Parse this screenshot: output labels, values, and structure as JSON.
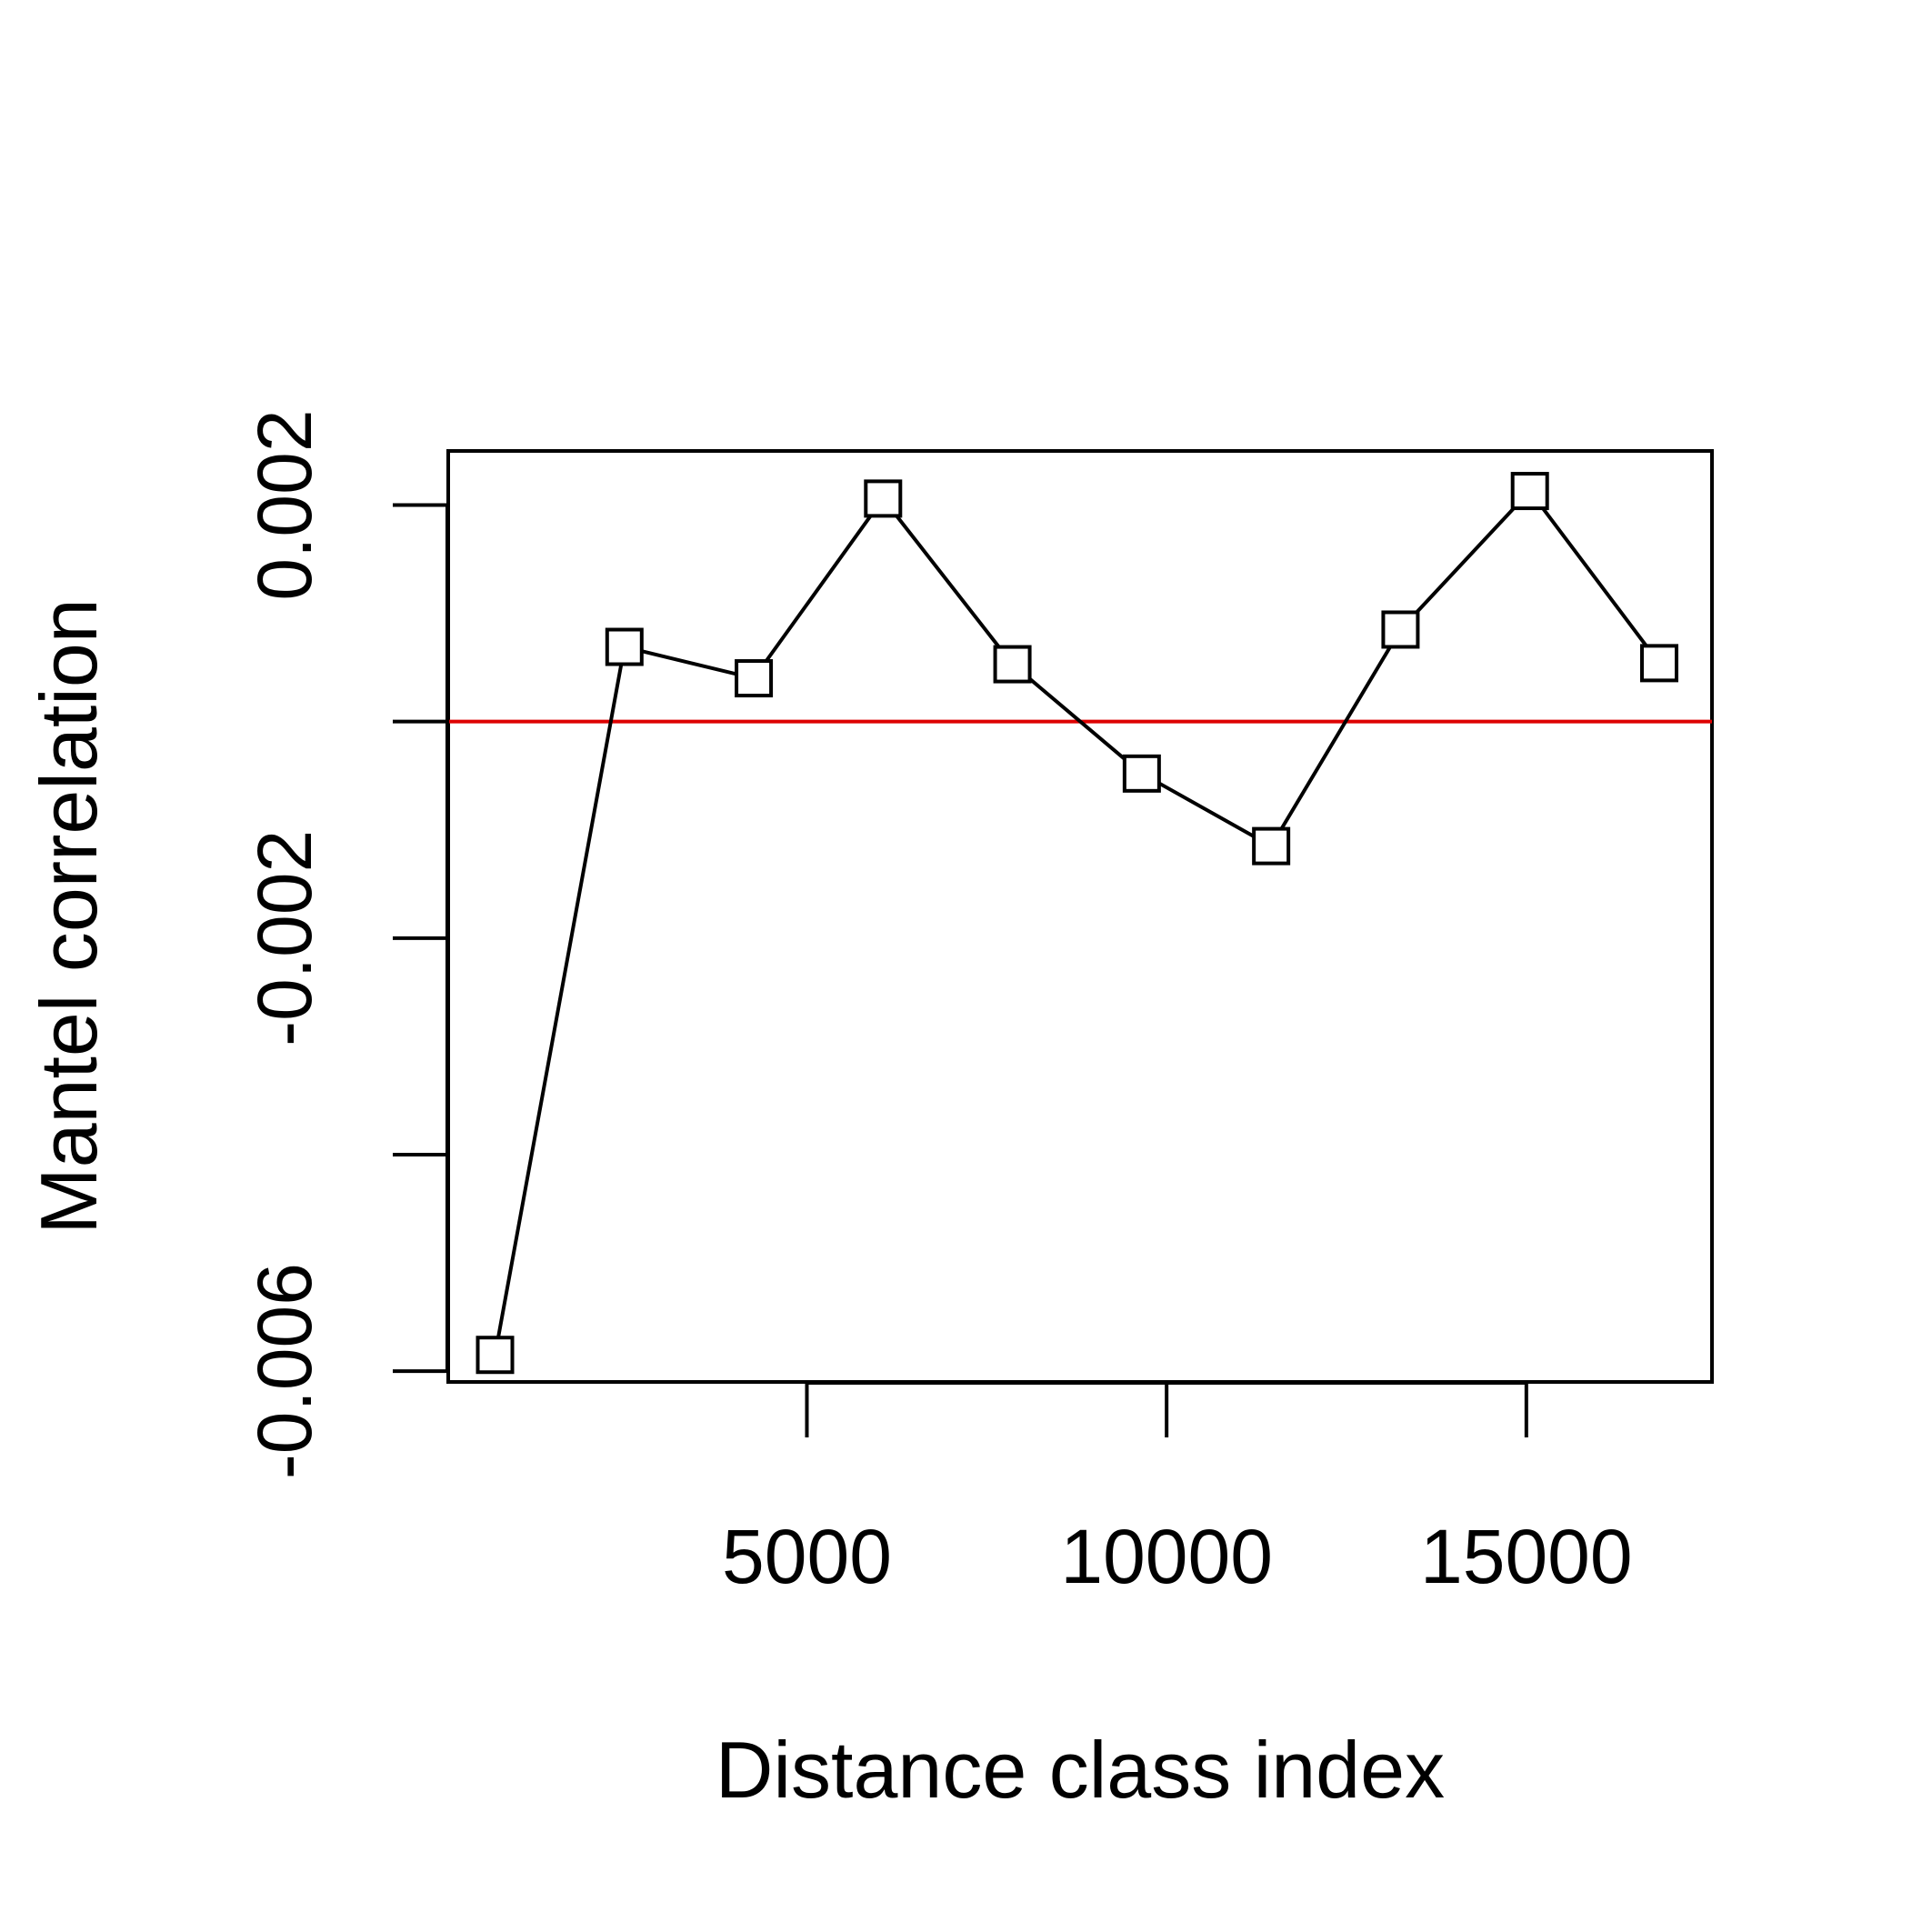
{
  "chart_data": {
    "type": "line",
    "title": "",
    "xlabel": "Distance class index",
    "ylabel": "Mantel correlation",
    "xlim": [
      15,
      17580
    ],
    "ylim": [
      -0.0061,
      0.0025
    ],
    "x_ticks": [
      5000,
      10000,
      15000
    ],
    "x_tick_labels": [
      "5000",
      "10000",
      "15000"
    ],
    "y_ticks": [
      -0.006,
      -0.004,
      -0.002,
      0.0,
      0.002
    ],
    "y_tick_labels": [
      "-0.006",
      "",
      "-0.002",
      "",
      "0.002"
    ],
    "reference_line": {
      "y": 0.0,
      "color": "#dd0000"
    },
    "series": [
      {
        "marker": "square",
        "line_color": "#000000",
        "x": [
          666,
          2464,
          4262,
          6059,
          7857,
          9655,
          11453,
          13251,
          15049,
          16847
        ],
        "y": [
          -0.00585,
          0.00069,
          0.0004,
          0.00206,
          0.00053,
          -0.00048,
          -0.00115,
          0.00085,
          0.00213,
          0.00054
        ]
      }
    ],
    "grid": false,
    "legend": "none"
  }
}
